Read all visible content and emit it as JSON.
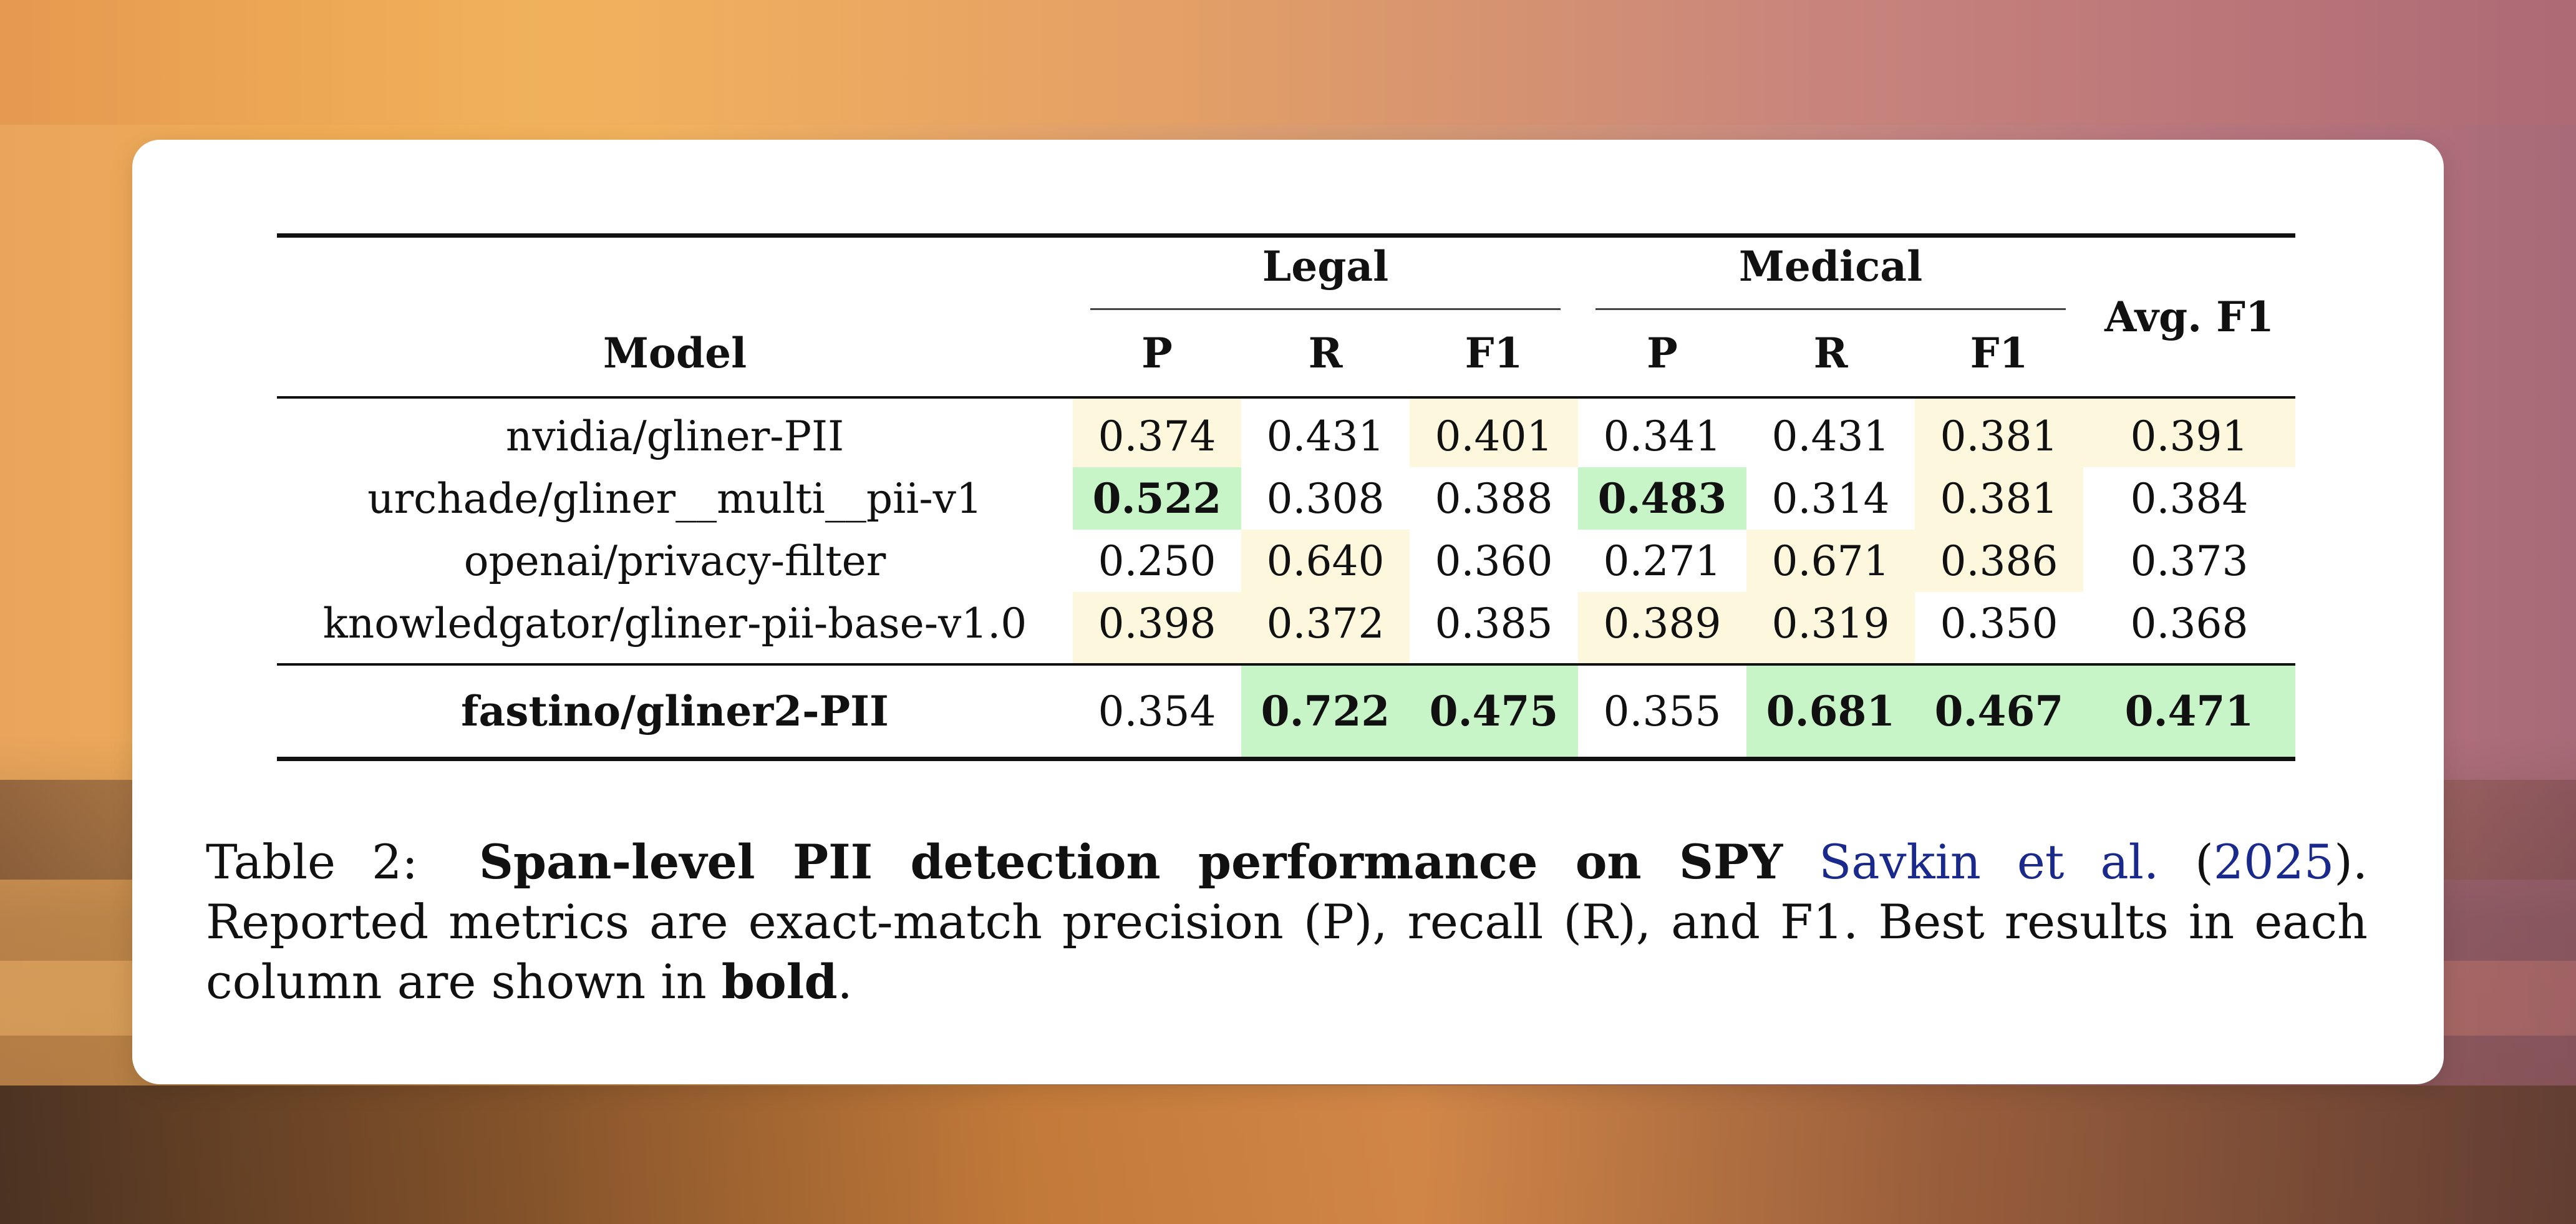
{
  "table": {
    "groups": [
      "Legal",
      "Medical"
    ],
    "model_header": "Model",
    "metric_headers": [
      "P",
      "R",
      "F1"
    ],
    "avg_header": "Avg. F1",
    "rows": [
      {
        "model": "nvidia/gliner-PII",
        "legal_p": "0.374",
        "legal_r": "0.431",
        "legal_f1": "0.401",
        "medical_p": "0.341",
        "medical_r": "0.431",
        "medical_f1": "0.381",
        "avg_f1": "0.391"
      },
      {
        "model": "urchade/gliner__multi__pii-v1",
        "legal_p": "0.522",
        "legal_r": "0.308",
        "legal_f1": "0.388",
        "medical_p": "0.483",
        "medical_r": "0.314",
        "medical_f1": "0.381",
        "avg_f1": "0.384"
      },
      {
        "model": "openai/privacy-filter",
        "legal_p": "0.250",
        "legal_r": "0.640",
        "legal_f1": "0.360",
        "medical_p": "0.271",
        "medical_r": "0.671",
        "medical_f1": "0.386",
        "avg_f1": "0.373"
      },
      {
        "model": "knowledgator/gliner-pii-base-v1.0",
        "legal_p": "0.398",
        "legal_r": "0.372",
        "legal_f1": "0.385",
        "medical_p": "0.389",
        "medical_r": "0.319",
        "medical_f1": "0.350",
        "avg_f1": "0.368"
      }
    ],
    "final_row": {
      "model": "fastino/gliner2-PII",
      "legal_p": "0.354",
      "legal_r": "0.722",
      "legal_f1": "0.475",
      "medical_p": "0.355",
      "medical_r": "0.681",
      "medical_f1": "0.467",
      "avg_f1": "0.471"
    },
    "highlight_colors": {
      "yellow": "#fdf8dd",
      "green": "#c8f5c8"
    }
  },
  "caption": {
    "label": "Table 2:",
    "bold_title": "Span-level PII detection performance on SPY",
    "cite_authors": "Savkin et al.",
    "paren_open": " (",
    "cite_year": "2025",
    "after_cite": "). Reported metrics are exact-match precision (P), recall (R), and F1. Best results in each column are shown in ",
    "bold_word": "bold",
    "end": ".",
    "cite_color": "#1a2a8c"
  }
}
